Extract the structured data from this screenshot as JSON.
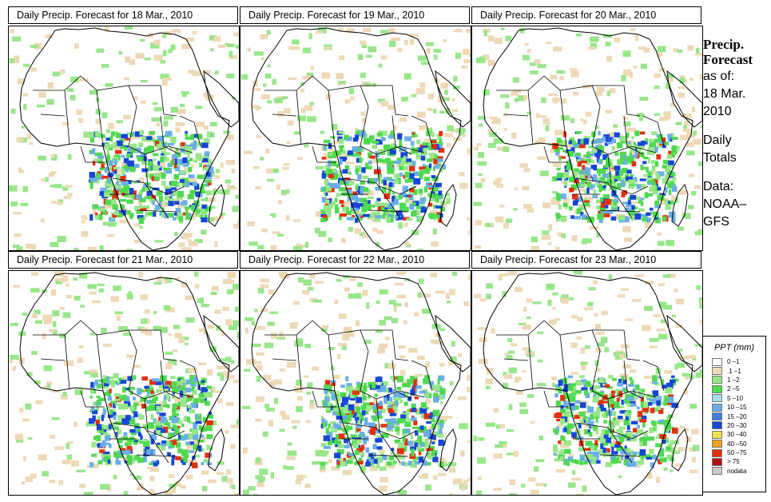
{
  "panels": [
    {
      "title": "Daily Precip. Forecast for  18 Mar., 2010"
    },
    {
      "title": "Daily Precip. Forecast for  19 Mar., 2010"
    },
    {
      "title": "Daily Precip. Forecast for  20 Mar., 2010"
    },
    {
      "title": "Daily Precip. Forecast for  21 Mar., 2010"
    },
    {
      "title": "Daily Precip. Forecast for  22 Mar., 2010"
    },
    {
      "title": "Daily Precip. Forecast for  23 Mar., 2010"
    }
  ],
  "side_info": {
    "title_line1": "Precip.",
    "title_line2": "Forecast",
    "asof_label": "as of:",
    "asof_date_line1": "18 Mar.",
    "asof_date_line2": "2010",
    "totals_line1": "Daily",
    "totals_line2": "Totals",
    "data_line1": "Data:",
    "data_line2": "NOAA–",
    "data_line3": "GFS"
  },
  "legend": {
    "title": "PPT (mm)",
    "items": [
      {
        "label": "0 –1",
        "color": "#ffffff"
      },
      {
        "label": ".1 –1",
        "color": "#eed9b6"
      },
      {
        "label": "1 –2",
        "color": "#98e68a"
      },
      {
        "label": "2 –5",
        "color": "#4fd94f"
      },
      {
        "label": "5 –10",
        "color": "#a8dcf0"
      },
      {
        "label": "10 –15",
        "color": "#6aaee8"
      },
      {
        "label": "15 –20",
        "color": "#3f7fe6"
      },
      {
        "label": "20 –30",
        "color": "#1546d6"
      },
      {
        "label": "30 –40",
        "color": "#f2e04a"
      },
      {
        "label": "40 –50",
        "color": "#f4a21e"
      },
      {
        "label": "50 –75",
        "color": "#e3300e"
      },
      {
        "label": "> 75",
        "color": "#b01010"
      },
      {
        "label": "nodata",
        "color": "#c8c8c8"
      }
    ]
  }
}
